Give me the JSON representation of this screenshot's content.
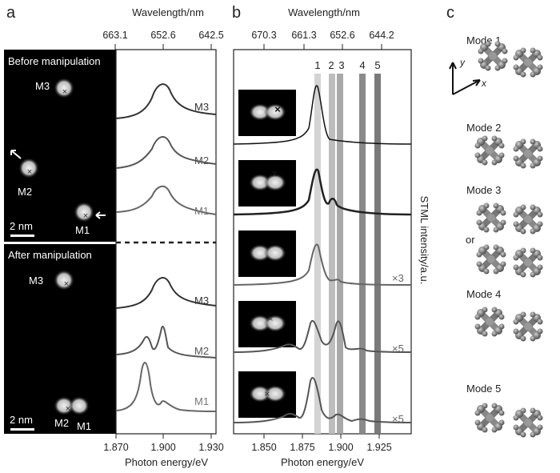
{
  "panel_labels": {
    "a": "a",
    "b": "b",
    "c": "c"
  },
  "panel_a": {
    "top_axis": {
      "title": "Wavelength/nm",
      "ticks": [
        "663.1",
        "652.6",
        "642.5"
      ]
    },
    "bottom_axis": {
      "title": "Photon energy/eV",
      "ticks": [
        "1.870",
        "1.900",
        "1.930"
      ]
    },
    "before": {
      "title": "Before manipulation",
      "molecules": [
        "M3",
        "M2",
        "M1"
      ],
      "scale": "2 nm",
      "spectra": [
        "M3",
        "M2",
        "M1"
      ]
    },
    "after": {
      "title": "After manipulation",
      "molecules": [
        "M3",
        "M2",
        "M1"
      ],
      "scale": "2 nm",
      "spectra": [
        "M3",
        "M2",
        "M1"
      ]
    }
  },
  "panel_b": {
    "top_axis": {
      "title": "Wavelength/nm",
      "ticks": [
        "670.3",
        "661.3",
        "652.6",
        "644.2"
      ]
    },
    "bottom_axis": {
      "title": "Photon energy/eV",
      "ticks": [
        "1.850",
        "1.875",
        "1.900",
        "1.925"
      ]
    },
    "y_axis_title": "STML intensity/a.u.",
    "band_labels": [
      "1",
      "2",
      "3",
      "4",
      "5"
    ],
    "multipliers": [
      "×3",
      "×5",
      "×5"
    ]
  },
  "panel_c": {
    "modes": [
      "Mode 1",
      "Mode 2",
      "Mode 3",
      "Mode 4",
      "Mode 5"
    ],
    "or_label": "or",
    "axis_y": "y",
    "axis_x": "x"
  },
  "colors": {
    "panel_bg": "#000000",
    "curve_dark": "#333333",
    "curve_mid": "#555555",
    "curve_light": "#777777"
  }
}
